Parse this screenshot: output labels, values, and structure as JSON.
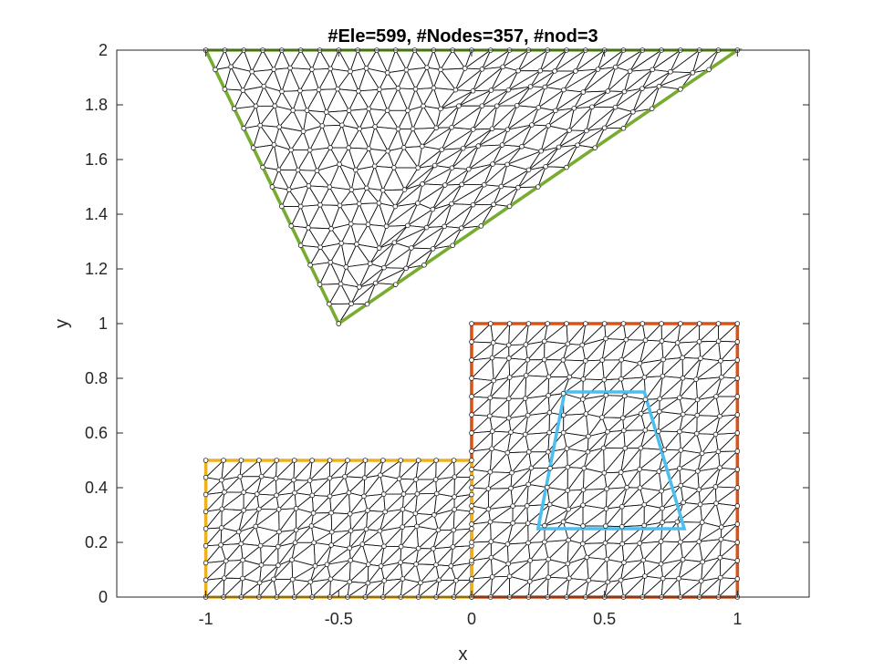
{
  "chart_data": {
    "type": "scatter",
    "title": "#Ele=599, #Nodes=357, #nod=3",
    "xlabel": "x",
    "ylabel": "y",
    "xlim": [
      -1.335,
      1.27
    ],
    "ylim": [
      0,
      2
    ],
    "xticks": [
      -1,
      -0.5,
      0,
      0.5,
      1
    ],
    "xtick_labels": [
      "-1",
      "-0.5",
      "0",
      "0.5",
      "1"
    ],
    "yticks": [
      0,
      0.2,
      0.4,
      0.6,
      0.8,
      1,
      1.2,
      1.4,
      1.6,
      1.8,
      2
    ],
    "ytick_labels": [
      "0",
      "0.2",
      "0.4",
      "0.6",
      "0.8",
      "1",
      "1.2",
      "1.4",
      "1.6",
      "1.8",
      "2"
    ],
    "grid": false,
    "mesh": {
      "elements": 599,
      "nodes": 357,
      "nodes_per_element": 3,
      "line_color": "#000000"
    },
    "regions": [
      {
        "shape": "triangle",
        "color": "#77AC30",
        "vertices": [
          [
            -1,
            2
          ],
          [
            1,
            2
          ],
          [
            -0.5,
            1
          ]
        ]
      },
      {
        "shape": "rectangle",
        "color": "#D95319",
        "vertices": [
          [
            0,
            0
          ],
          [
            1,
            0
          ],
          [
            1,
            1
          ],
          [
            0,
            1
          ]
        ]
      },
      {
        "shape": "rectangle",
        "color": "#EDB120",
        "vertices": [
          [
            -1,
            0
          ],
          [
            0,
            0
          ],
          [
            0,
            0.5
          ],
          [
            -1,
            0.5
          ]
        ]
      },
      {
        "shape": "trapezoid",
        "color": "#4DBEEE",
        "vertices": [
          [
            0.25,
            0.25
          ],
          [
            0.8,
            0.25
          ],
          [
            0.65,
            0.75
          ],
          [
            0.35,
            0.75
          ]
        ]
      }
    ]
  }
}
